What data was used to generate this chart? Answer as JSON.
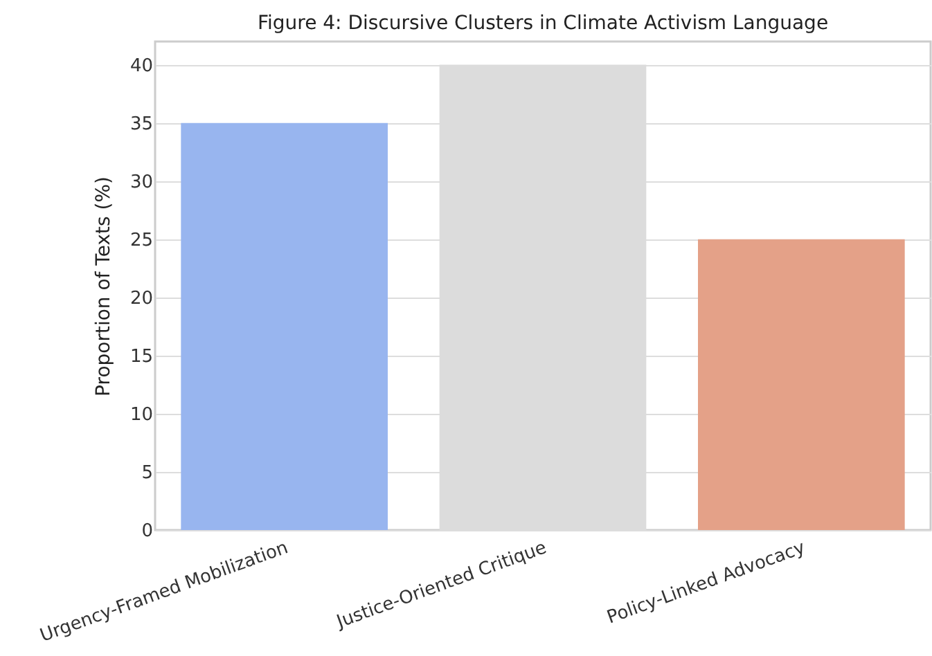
{
  "chart_data": {
    "type": "bar",
    "title": "Figure 4: Discursive Clusters in Climate Activism Language",
    "ylabel": "Proportion of Texts (%)",
    "categories": [
      "Urgency-Framed Mobilization",
      "Justice-Oriented Critique",
      "Policy-Linked Advocacy"
    ],
    "values": [
      35,
      40,
      25
    ],
    "colors": [
      "#98b5ef",
      "#dcdcdc",
      "#e4a188"
    ],
    "ylim": [
      0,
      42
    ],
    "yticks": [
      0,
      5,
      10,
      15,
      20,
      25,
      30,
      35,
      40
    ],
    "grid": "y"
  }
}
